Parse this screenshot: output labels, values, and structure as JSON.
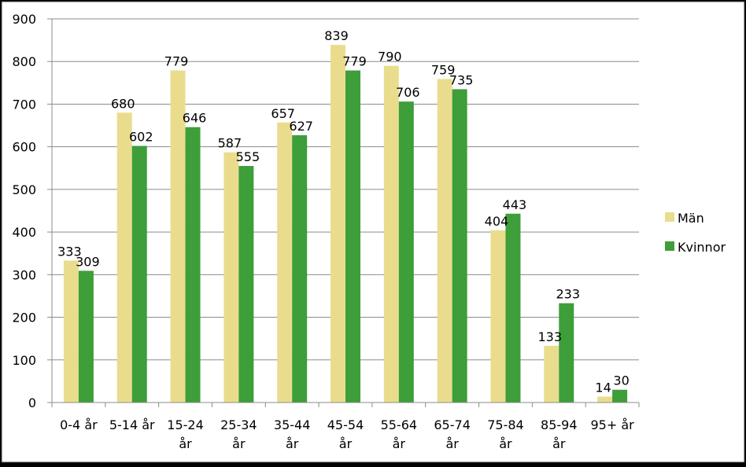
{
  "chart_data": {
    "type": "bar",
    "title": "",
    "xlabel": "",
    "ylabel": "",
    "categories": [
      "0-4 år",
      "5-14 år",
      "15-24 år",
      "25-34 år",
      "35-44 år",
      "45-54 år",
      "55-64 år",
      "65-74 år",
      "75-84 år",
      "85-94 år",
      "95+ år"
    ],
    "category_lines": [
      [
        "0-4 år"
      ],
      [
        "5-14 år"
      ],
      [
        "15-24",
        "år"
      ],
      [
        "25-34",
        "år"
      ],
      [
        "35-44",
        "år"
      ],
      [
        "45-54",
        "år"
      ],
      [
        "55-64",
        "år"
      ],
      [
        "65-74",
        "år"
      ],
      [
        "75-84",
        "år"
      ],
      [
        "85-94",
        "år"
      ],
      [
        "95+ år"
      ]
    ],
    "series": [
      {
        "name": "Män",
        "color": "#e9dd8d",
        "values": [
          333,
          680,
          779,
          587,
          657,
          839,
          790,
          759,
          404,
          133,
          14
        ]
      },
      {
        "name": "Kvinnor",
        "color": "#3d9e3a",
        "values": [
          309,
          602,
          646,
          555,
          627,
          779,
          706,
          735,
          443,
          233,
          30
        ]
      }
    ],
    "ylim": [
      0,
      900
    ],
    "yticks": [
      0,
      100,
      200,
      300,
      400,
      500,
      600,
      700,
      800,
      900
    ],
    "grid": true,
    "legend_position": "right",
    "data_labels": true
  },
  "colors": {
    "background": "#000000",
    "plot_area": "#ffffff",
    "gridline": "#8c8c8c",
    "text": "#000000"
  }
}
